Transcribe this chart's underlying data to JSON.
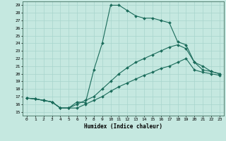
{
  "title": "",
  "xlabel": "Humidex (Indice chaleur)",
  "xlim": [
    -0.5,
    23.5
  ],
  "ylim": [
    14.5,
    29.5
  ],
  "xticks": [
    0,
    1,
    2,
    3,
    4,
    5,
    6,
    7,
    8,
    9,
    10,
    11,
    12,
    13,
    14,
    15,
    16,
    17,
    18,
    19,
    20,
    21,
    22,
    23
  ],
  "yticks": [
    15,
    16,
    17,
    18,
    19,
    20,
    21,
    22,
    23,
    24,
    25,
    26,
    27,
    28,
    29
  ],
  "bg_color": "#c5e8e0",
  "line_color": "#1a6b5a",
  "grid_color": "#a8d5cc",
  "line1_x": [
    0,
    1,
    2,
    3,
    4,
    5,
    6,
    7,
    8,
    9,
    10,
    11,
    12,
    13,
    14,
    15,
    16,
    17,
    18,
    19,
    20,
    21,
    22,
    23
  ],
  "line1_y": [
    16.8,
    16.7,
    16.5,
    16.3,
    15.5,
    15.5,
    16.3,
    16.2,
    20.5,
    24.0,
    29.0,
    29.0,
    28.3,
    27.6,
    27.3,
    27.3,
    27.0,
    26.7,
    24.2,
    23.8,
    21.5,
    21.0,
    20.3,
    20.0
  ],
  "line2_x": [
    0,
    1,
    2,
    3,
    4,
    5,
    6,
    7,
    8,
    9,
    10,
    11,
    12,
    13,
    14,
    15,
    16,
    17,
    18,
    19,
    20,
    21,
    22,
    23
  ],
  "line2_y": [
    16.8,
    16.7,
    16.5,
    16.3,
    15.5,
    15.5,
    16.0,
    16.5,
    17.0,
    18.0,
    19.0,
    20.0,
    20.8,
    21.5,
    22.0,
    22.5,
    23.0,
    23.5,
    23.8,
    23.3,
    21.5,
    20.5,
    20.3,
    20.0
  ],
  "line3_x": [
    0,
    1,
    2,
    3,
    4,
    5,
    6,
    7,
    8,
    9,
    10,
    11,
    12,
    13,
    14,
    15,
    16,
    17,
    18,
    19,
    20,
    21,
    22,
    23
  ],
  "line3_y": [
    16.8,
    16.7,
    16.5,
    16.3,
    15.5,
    15.5,
    15.5,
    16.0,
    16.5,
    17.0,
    17.7,
    18.3,
    18.8,
    19.3,
    19.8,
    20.2,
    20.7,
    21.0,
    21.5,
    22.0,
    20.5,
    20.2,
    20.0,
    19.8
  ]
}
